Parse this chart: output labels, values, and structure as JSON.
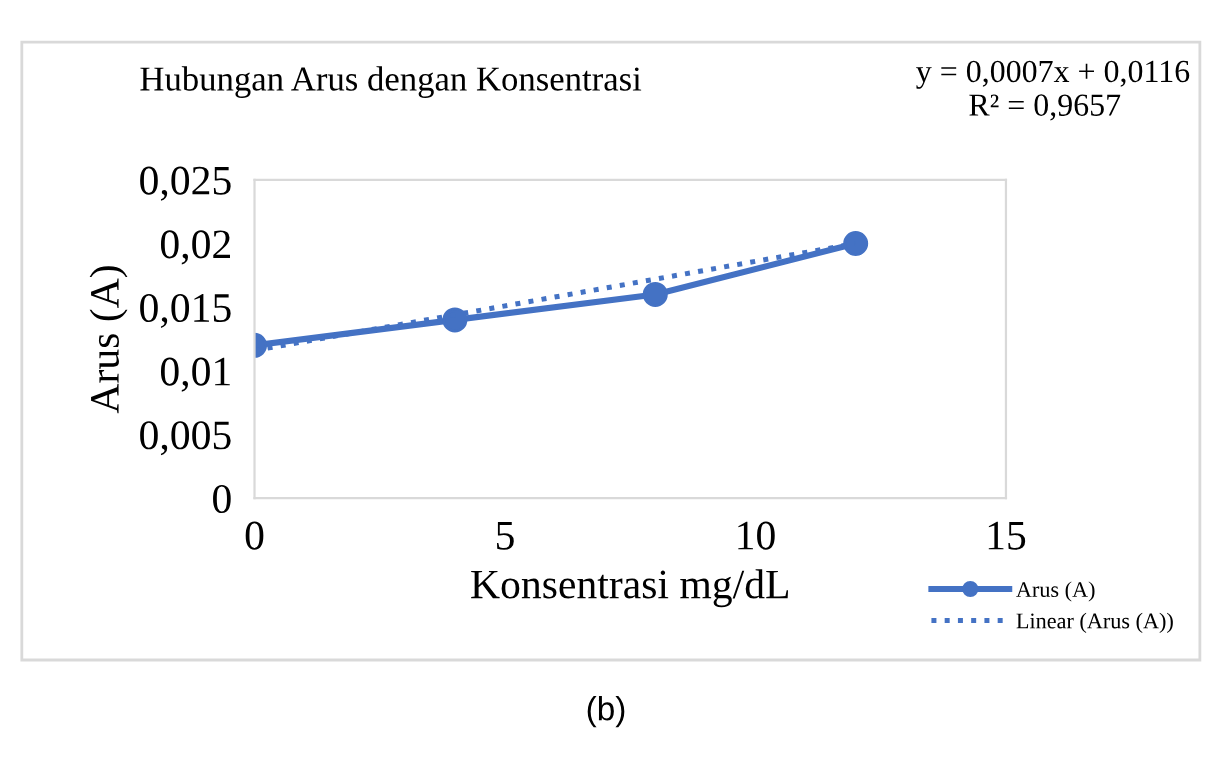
{
  "chart_data": {
    "type": "line",
    "title": "Hubungan Arus dengan Konsentrasi",
    "xlabel": "Konsentrasi mg/dL",
    "ylabel": "Arus (A)",
    "x": [
      0,
      4,
      8,
      12
    ],
    "series": [
      {
        "name": "Arus (A)",
        "color": "#4472c4",
        "values": [
          0.012,
          0.014,
          0.016,
          0.02
        ],
        "marker": "circle",
        "line_style": "solid"
      },
      {
        "name": "Linear (Arus (A))",
        "color": "#4472c4",
        "type": "line",
        "x": [
          0,
          12
        ],
        "values": [
          0.0116,
          0.02
        ],
        "marker": "none",
        "line_style": "dotted"
      }
    ],
    "xlim": [
      0,
      15
    ],
    "xticks": [
      0,
      5,
      10,
      15
    ],
    "ylim": [
      0,
      0.025
    ],
    "yticks": [
      {
        "value": 0,
        "label": "0"
      },
      {
        "value": 0.005,
        "label": "0,005"
      },
      {
        "value": 0.01,
        "label": "0,01"
      },
      {
        "value": 0.015,
        "label": "0,015"
      },
      {
        "value": 0.02,
        "label": "0,02"
      },
      {
        "value": 0.025,
        "label": "0,025"
      }
    ],
    "grid": false,
    "legend": "bottom right",
    "annotations": [
      "y = 0,0007x + 0,0116",
      "R² = 0,9657",
      "(b)"
    ]
  }
}
